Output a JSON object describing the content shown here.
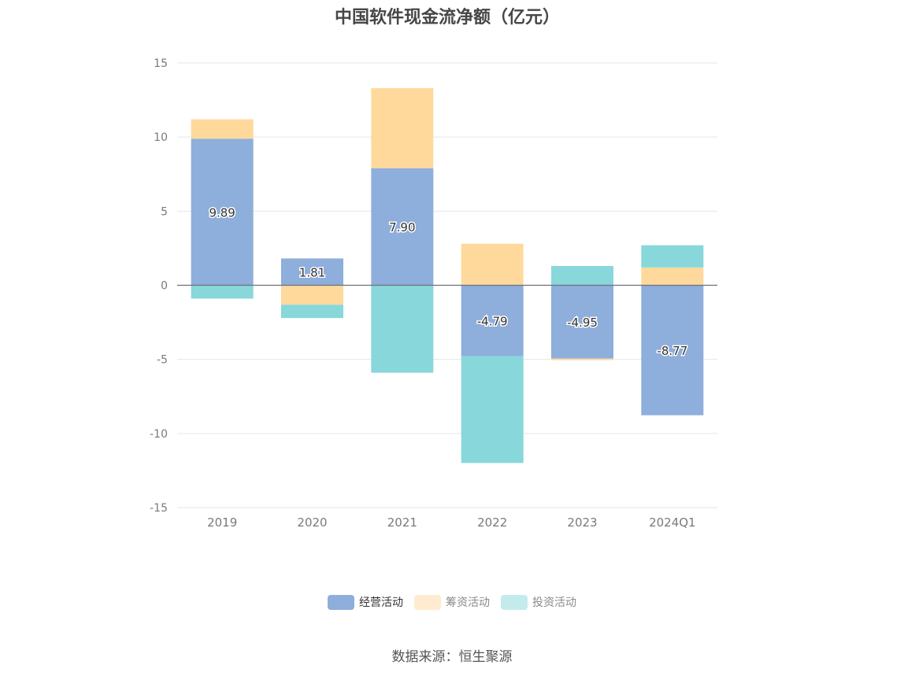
{
  "chart_data": {
    "type": "bar",
    "stacked": true,
    "title": "中国软件现金流净额（亿元）",
    "categories": [
      "2019",
      "2020",
      "2021",
      "2022",
      "2023",
      "2024Q1"
    ],
    "series": [
      {
        "name": "经营活动",
        "color": "#8eaedb",
        "values": [
          9.89,
          1.81,
          7.9,
          -4.79,
          -4.95,
          -8.77
        ],
        "labels": [
          "9.89",
          "1.81",
          "7.90",
          "-4.79",
          "-4.95",
          "-8.77"
        ]
      },
      {
        "name": "筹资活动",
        "color": "#ffd99c",
        "values": [
          1.31,
          -1.31,
          5.4,
          2.8,
          -0.1,
          1.2
        ]
      },
      {
        "name": "投资活动",
        "color": "#88d7da",
        "values": [
          -0.9,
          -0.9,
          -5.9,
          -7.2,
          1.3,
          1.5
        ]
      }
    ],
    "ylim": [
      -15,
      15
    ],
    "yticks": [
      "15",
      "10",
      "5",
      "0",
      "-5",
      "-10",
      "-15"
    ],
    "grid": true,
    "legend_position": "bottom"
  },
  "legend": {
    "items": [
      {
        "label": "经营活动",
        "color": "#8eaedb",
        "swatch": "#8eaedb"
      },
      {
        "label": "筹资活动",
        "color": "#ffd99c",
        "swatch": "#ffecd0"
      },
      {
        "label": "投资活动",
        "color": "#88d7da",
        "swatch": "#c4ebec"
      }
    ]
  },
  "source": "数据来源：恒生聚源"
}
